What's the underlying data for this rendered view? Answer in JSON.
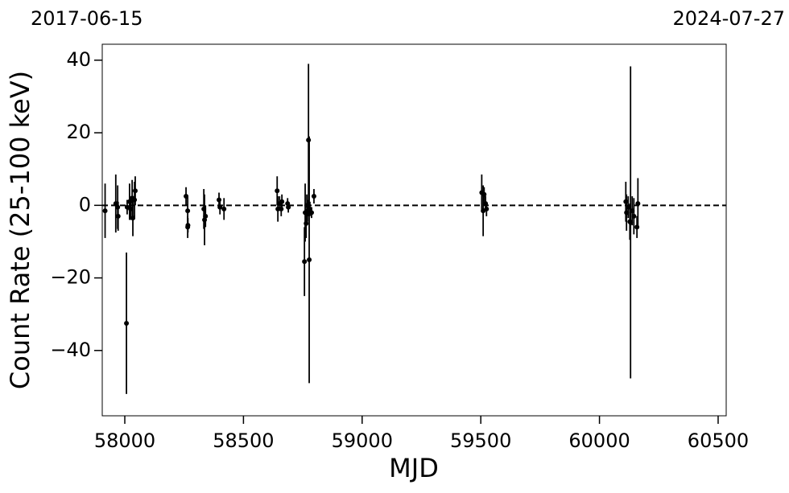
{
  "chart_data": {
    "type": "errorbar",
    "x_label": "MJD",
    "y_label": "Count Rate (25-100 keV)",
    "annotations": [
      "2017-06-15",
      "2024-07-27"
    ],
    "xlim": [
      57905,
      60534
    ],
    "ylim": [
      -58,
      44.4
    ],
    "xticks": [
      58000,
      58500,
      59000,
      59500,
      60000,
      60500
    ],
    "yticks": [
      {
        "value": -40,
        "label": "−40"
      },
      {
        "value": -20,
        "label": "−20"
      },
      0,
      20,
      40
    ],
    "reference_line": 0,
    "color": "#000000",
    "series": [
      {
        "x": [
          57917,
          57962,
          57970,
          57972,
          58007,
          58010,
          58020,
          58024,
          58031,
          58034,
          58041,
          58044,
          58258,
          58265,
          58265,
          58266,
          58333,
          58336,
          58340,
          58397,
          58401,
          58418,
          58642,
          58645,
          58652,
          58659,
          58662,
          58686,
          58689,
          58757,
          58760,
          58764,
          58767,
          58770,
          58774,
          58777,
          58780,
          58787,
          58797,
          59504,
          59510,
          59514,
          59520,
          59524,
          60111,
          60114,
          60121,
          60128,
          60131,
          60138,
          60145,
          60158,
          60162
        ],
        "y": [
          -1.5,
          0.5,
          -0.5,
          -3,
          -32.5,
          -0.5,
          1,
          -1,
          2,
          -3.5,
          1.5,
          4,
          2.5,
          -1.5,
          -6,
          -5.5,
          -1,
          -4,
          -3,
          1.5,
          -0.5,
          -1,
          4,
          -1,
          0.5,
          -1,
          1,
          0.5,
          -0.5,
          -15.5,
          -2,
          -5,
          0,
          -1.5,
          18,
          -15,
          -1,
          -2,
          2.5,
          3.5,
          -1.5,
          3,
          0.5,
          -1,
          1,
          -2,
          -0.5,
          -4.5,
          -4.7,
          -1.5,
          -3,
          -6,
          0.5
        ],
        "yerr": [
          7.5,
          8,
          6,
          4,
          19.5,
          2,
          5,
          3,
          5,
          5,
          5,
          4,
          2.5,
          4,
          3,
          2,
          5.5,
          7,
          3,
          2,
          2,
          3,
          4,
          3.5,
          2,
          2,
          2,
          1.5,
          1.5,
          9.5,
          8,
          4,
          3,
          3,
          21,
          34,
          2,
          1.5,
          2,
          5,
          7,
          2,
          2,
          2,
          5.5,
          5,
          3,
          5,
          43,
          4,
          5,
          3,
          7
        ]
      }
    ]
  }
}
